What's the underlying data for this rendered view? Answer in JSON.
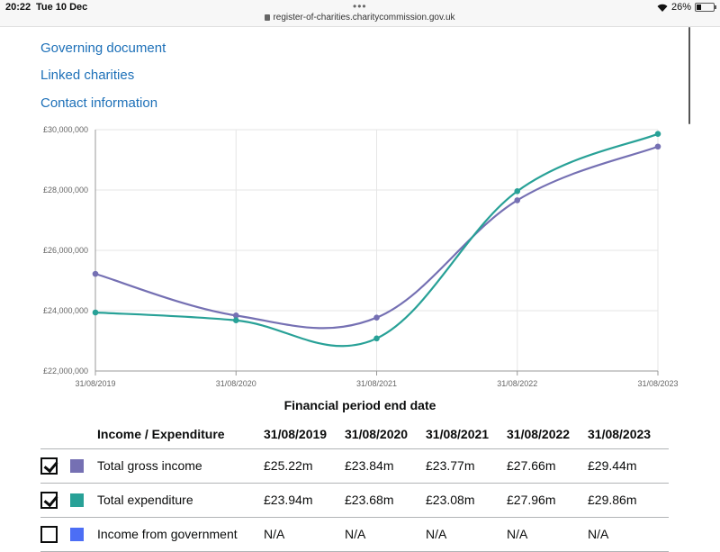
{
  "status": {
    "time": "20:22",
    "date": "Tue 10 Dec",
    "url": "register-of-charities.charitycommission.gov.uk",
    "battery": "26%",
    "battery_level": 0.26
  },
  "links": [
    {
      "label": "Governing document"
    },
    {
      "label": "Linked charities"
    },
    {
      "label": "Contact information"
    }
  ],
  "chart_data": {
    "type": "line",
    "x": [
      "31/08/2019",
      "31/08/2020",
      "31/08/2021",
      "31/08/2022",
      "31/08/2023"
    ],
    "y_ticks": [
      "£30,000,000",
      "£28,000,000",
      "£26,000,000",
      "£24,000,000",
      "£22,000,000"
    ],
    "ylim": [
      22000000,
      30000000
    ],
    "xlabel": "Financial period end date",
    "ylabel": "",
    "grid": true,
    "series": [
      {
        "name": "Total gross income",
        "color": "#7570b3",
        "values": [
          25220000,
          23840000,
          23770000,
          27660000,
          29440000
        ]
      },
      {
        "name": "Total expenditure",
        "color": "#28a197",
        "values": [
          23940000,
          23680000,
          23080000,
          27960000,
          29860000
        ]
      }
    ]
  },
  "table": {
    "headers": [
      "Income / Expenditure",
      "31/08/2019",
      "31/08/2020",
      "31/08/2021",
      "31/08/2022",
      "31/08/2023"
    ],
    "rows": [
      {
        "label": "Total gross income",
        "checked": true,
        "color": "#7570b3",
        "values": [
          "£25.22m",
          "£23.84m",
          "£23.77m",
          "£27.66m",
          "£29.44m"
        ]
      },
      {
        "label": "Total expenditure",
        "checked": true,
        "color": "#28a197",
        "values": [
          "£23.94m",
          "£23.68m",
          "£23.08m",
          "£27.96m",
          "£29.86m"
        ]
      },
      {
        "label": "Income from government",
        "checked": false,
        "color": "#4c6ef5",
        "values": [
          "N/A",
          "N/A",
          "N/A",
          "N/A",
          "N/A"
        ]
      }
    ]
  }
}
